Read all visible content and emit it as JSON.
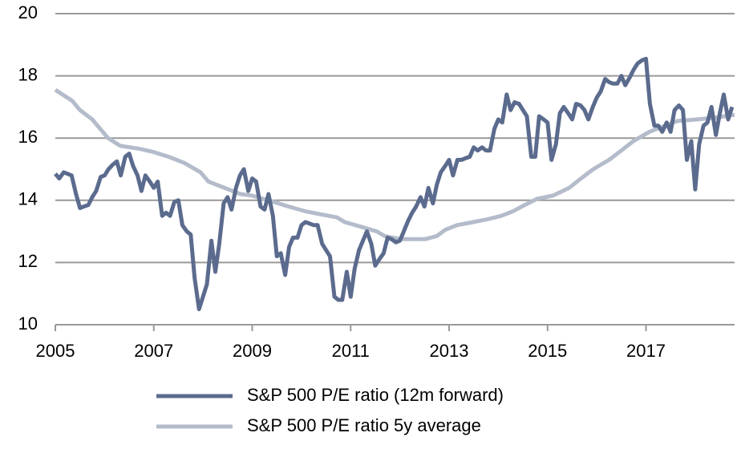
{
  "chart_data": {
    "type": "line",
    "xlim": [
      2005,
      2018.8
    ],
    "xticks": [
      2005,
      2007,
      2009,
      2011,
      2013,
      2015,
      2017
    ],
    "ylim": [
      10,
      20
    ],
    "yticks": [
      10,
      12,
      14,
      16,
      18,
      20
    ],
    "grid": true,
    "legend": "bottom",
    "series": [
      {
        "name": "S&P 500 P/E ratio (12m forward)",
        "color": "#5b6b8e",
        "x": [
          2005.0,
          2005.08,
          2005.17,
          2005.25,
          2005.33,
          2005.42,
          2005.5,
          2005.58,
          2005.67,
          2005.75,
          2005.83,
          2005.92,
          2006.0,
          2006.08,
          2006.17,
          2006.25,
          2006.33,
          2006.42,
          2006.5,
          2006.58,
          2006.67,
          2006.75,
          2006.83,
          2006.92,
          2007.0,
          2007.08,
          2007.17,
          2007.25,
          2007.33,
          2007.42,
          2007.5,
          2007.58,
          2007.67,
          2007.75,
          2007.83,
          2007.92,
          2008.0,
          2008.08,
          2008.17,
          2008.25,
          2008.33,
          2008.42,
          2008.5,
          2008.58,
          2008.67,
          2008.75,
          2008.83,
          2008.92,
          2009.0,
          2009.08,
          2009.17,
          2009.25,
          2009.33,
          2009.42,
          2009.5,
          2009.58,
          2009.67,
          2009.75,
          2009.83,
          2009.92,
          2010.0,
          2010.08,
          2010.17,
          2010.25,
          2010.33,
          2010.42,
          2010.5,
          2010.58,
          2010.67,
          2010.75,
          2010.83,
          2010.92,
          2011.0,
          2011.08,
          2011.17,
          2011.25,
          2011.33,
          2011.42,
          2011.5,
          2011.58,
          2011.67,
          2011.75,
          2011.83,
          2011.92,
          2012.0,
          2012.08,
          2012.17,
          2012.25,
          2012.33,
          2012.42,
          2012.5,
          2012.58,
          2012.67,
          2012.75,
          2012.83,
          2012.92,
          2013.0,
          2013.08,
          2013.17,
          2013.25,
          2013.33,
          2013.42,
          2013.5,
          2013.58,
          2013.67,
          2013.75,
          2013.83,
          2013.92,
          2014.0,
          2014.08,
          2014.17,
          2014.25,
          2014.33,
          2014.42,
          2014.5,
          2014.58,
          2014.67,
          2014.75,
          2014.83,
          2014.92,
          2015.0,
          2015.08,
          2015.17,
          2015.25,
          2015.33,
          2015.42,
          2015.5,
          2015.58,
          2015.67,
          2015.75,
          2015.83,
          2015.92,
          2016.0,
          2016.08,
          2016.17,
          2016.25,
          2016.33,
          2016.42,
          2016.5,
          2016.58,
          2016.67,
          2016.75,
          2016.83,
          2016.92,
          2017.0,
          2017.08,
          2017.17,
          2017.25,
          2017.33,
          2017.42,
          2017.5,
          2017.58,
          2017.67,
          2017.75,
          2017.83,
          2017.92,
          2018.0,
          2018.08,
          2018.17,
          2018.25,
          2018.33,
          2018.42,
          2018.5,
          2018.58,
          2018.67,
          2018.75
        ],
        "values": [
          14.85,
          14.7,
          14.9,
          14.85,
          14.8,
          14.2,
          13.75,
          13.8,
          13.85,
          14.1,
          14.3,
          14.75,
          14.8,
          15.0,
          15.15,
          15.25,
          14.8,
          15.4,
          15.5,
          15.1,
          14.8,
          14.3,
          14.8,
          14.6,
          14.4,
          14.6,
          13.5,
          13.6,
          13.5,
          13.95,
          14.0,
          13.2,
          13.0,
          12.9,
          11.5,
          10.5,
          10.9,
          11.3,
          12.7,
          11.7,
          12.6,
          13.9,
          14.1,
          13.7,
          14.4,
          14.8,
          15.0,
          14.3,
          14.7,
          14.6,
          13.8,
          13.7,
          14.2,
          13.5,
          12.2,
          12.3,
          11.6,
          12.5,
          12.8,
          12.8,
          13.2,
          13.3,
          13.25,
          13.2,
          13.2,
          12.6,
          12.4,
          12.2,
          10.9,
          10.8,
          10.8,
          11.7,
          10.9,
          11.8,
          12.4,
          12.7,
          13.0,
          12.6,
          11.9,
          12.1,
          12.3,
          12.8,
          12.75,
          12.65,
          12.7,
          13.0,
          13.35,
          13.6,
          13.8,
          14.1,
          13.8,
          14.4,
          13.9,
          14.5,
          14.9,
          15.1,
          15.3,
          14.8,
          15.3,
          15.3,
          15.35,
          15.4,
          15.7,
          15.6,
          15.7,
          15.6,
          15.6,
          16.3,
          16.6,
          16.5,
          17.4,
          16.9,
          17.15,
          17.1,
          16.9,
          16.7,
          15.4,
          15.4,
          16.7,
          16.6,
          16.5,
          15.3,
          15.8,
          16.8,
          17.0,
          16.8,
          16.6,
          17.1,
          17.05,
          16.9,
          16.6,
          17.0,
          17.3,
          17.5,
          17.9,
          17.8,
          17.75,
          17.75,
          18.0,
          17.7,
          17.95,
          18.2,
          18.4,
          18.5,
          18.55,
          17.1,
          16.4,
          16.4,
          16.2,
          16.5,
          16.2,
          16.9,
          17.05,
          16.9,
          15.3,
          15.9,
          14.35,
          15.8,
          16.4,
          16.5,
          17.0,
          16.1,
          16.8,
          17.4,
          16.6,
          17.0
        ]
      },
      {
        "name": "S&P 500 P/E ratio 5y average",
        "color": "#b4bccb",
        "x": [
          2005.0,
          2005.34,
          2005.5,
          2005.75,
          2005.91,
          2006.07,
          2006.32,
          2006.73,
          2007.0,
          2007.3,
          2007.62,
          2007.95,
          2008.11,
          2008.44,
          2008.76,
          2009.0,
          2009.33,
          2009.74,
          2010.07,
          2010.39,
          2010.72,
          2010.88,
          2011.21,
          2011.53,
          2011.69,
          2012.02,
          2012.51,
          2012.75,
          2012.92,
          2013.16,
          2013.49,
          2013.81,
          2014.06,
          2014.3,
          2014.54,
          2014.79,
          2015.11,
          2015.44,
          2015.68,
          2015.93,
          2016.25,
          2016.5,
          2016.74,
          2017.07,
          2017.39,
          2017.64,
          2018.05,
          2018.37,
          2018.8
        ],
        "values": [
          17.55,
          17.2,
          16.9,
          16.6,
          16.3,
          16.0,
          15.75,
          15.65,
          15.55,
          15.4,
          15.2,
          14.9,
          14.6,
          14.4,
          14.2,
          14.15,
          14.0,
          13.8,
          13.65,
          13.55,
          13.45,
          13.3,
          13.15,
          13.0,
          12.85,
          12.75,
          12.75,
          12.85,
          13.05,
          13.2,
          13.3,
          13.4,
          13.5,
          13.65,
          13.85,
          14.05,
          14.15,
          14.4,
          14.7,
          15.0,
          15.3,
          15.6,
          15.9,
          16.2,
          16.4,
          16.55,
          16.6,
          16.65,
          16.75
        ]
      }
    ]
  }
}
